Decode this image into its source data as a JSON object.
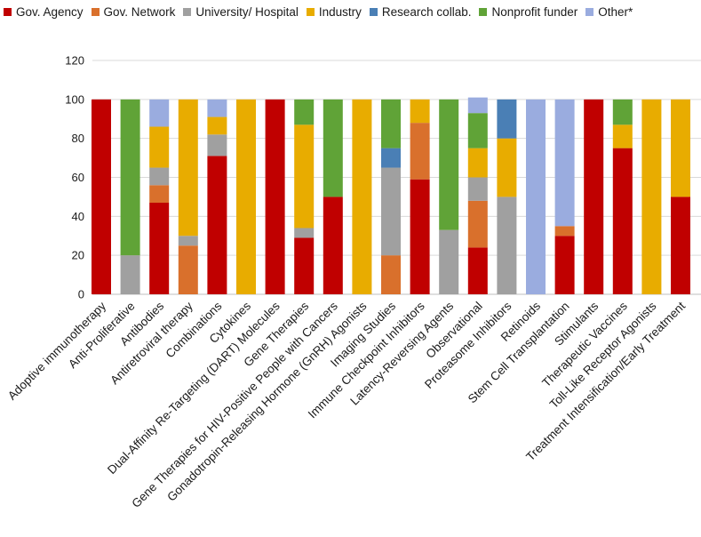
{
  "chart_data": {
    "type": "bar",
    "stacked": true,
    "title": "",
    "xlabel": "",
    "ylabel": "",
    "ylim": [
      0,
      120
    ],
    "yticks": [
      0,
      20,
      40,
      60,
      80,
      100,
      120
    ],
    "grid": true,
    "legend_position": "top",
    "categories": [
      "Adoptive immunotherapy",
      "Anti-Proliferative",
      "Antibodies",
      "Antiretroviral therapy",
      "Combinations",
      "Cytokines",
      "Dual-Affinity Re-Targeting (DART) Molecules",
      "Gene Therapies",
      "Gene Therapies for HIV-Positive People with Cancers",
      "Gonadotropin-Releasing Hormone (GnRH) Agonists",
      "Imaging Studies",
      "Immune Checkpoint Inhibitors",
      "Latency-Reversing Agents",
      "Observational",
      "Proteasome Inhibitors",
      "Retinoids",
      "Stem Cell Transplantation",
      "Stimulants",
      "Therapeutic Vaccines",
      "Toll-Like Receptor Agonists",
      "Treatment Intensification/Early Treatment"
    ],
    "series": [
      {
        "name": "Gov. Agency",
        "color": "#c00000",
        "values": [
          100,
          0,
          47,
          0,
          71,
          0,
          100,
          29,
          50,
          0,
          0,
          59,
          0,
          24,
          0,
          0,
          30,
          100,
          75,
          0,
          50
        ]
      },
      {
        "name": "Gov. Network",
        "color": "#d9702c",
        "values": [
          0,
          0,
          9,
          25,
          0,
          0,
          0,
          0,
          0,
          0,
          20,
          29,
          0,
          24,
          0,
          0,
          5,
          0,
          0,
          0,
          0
        ]
      },
      {
        "name": "University/ Hospital",
        "color": "#a0a0a0",
        "values": [
          0,
          20,
          9,
          5,
          11,
          0,
          0,
          5,
          0,
          0,
          45,
          0,
          33,
          12,
          50,
          0,
          0,
          0,
          0,
          0,
          0
        ]
      },
      {
        "name": "Industry",
        "color": "#e8ac00",
        "values": [
          0,
          0,
          21,
          70,
          9,
          100,
          0,
          53,
          0,
          100,
          0,
          12,
          0,
          15,
          30,
          0,
          0,
          0,
          12,
          100,
          50
        ]
      },
      {
        "name": "Research collab.",
        "color": "#4a7fb5",
        "values": [
          0,
          0,
          0,
          0,
          0,
          0,
          0,
          0,
          0,
          0,
          10,
          0,
          0,
          0,
          20,
          0,
          0,
          0,
          0,
          0,
          0
        ]
      },
      {
        "name": "Nonprofit funder",
        "color": "#60a337",
        "values": [
          0,
          80,
          0,
          0,
          0,
          0,
          0,
          13,
          50,
          0,
          25,
          0,
          67,
          18,
          0,
          0,
          0,
          0,
          13,
          0,
          0
        ]
      },
      {
        "name": "Other*",
        "color": "#9aacdf",
        "values": [
          0,
          0,
          14,
          0,
          9,
          0,
          0,
          0,
          0,
          0,
          0,
          0,
          0,
          8,
          0,
          100,
          65,
          0,
          0,
          0,
          0
        ]
      }
    ]
  }
}
